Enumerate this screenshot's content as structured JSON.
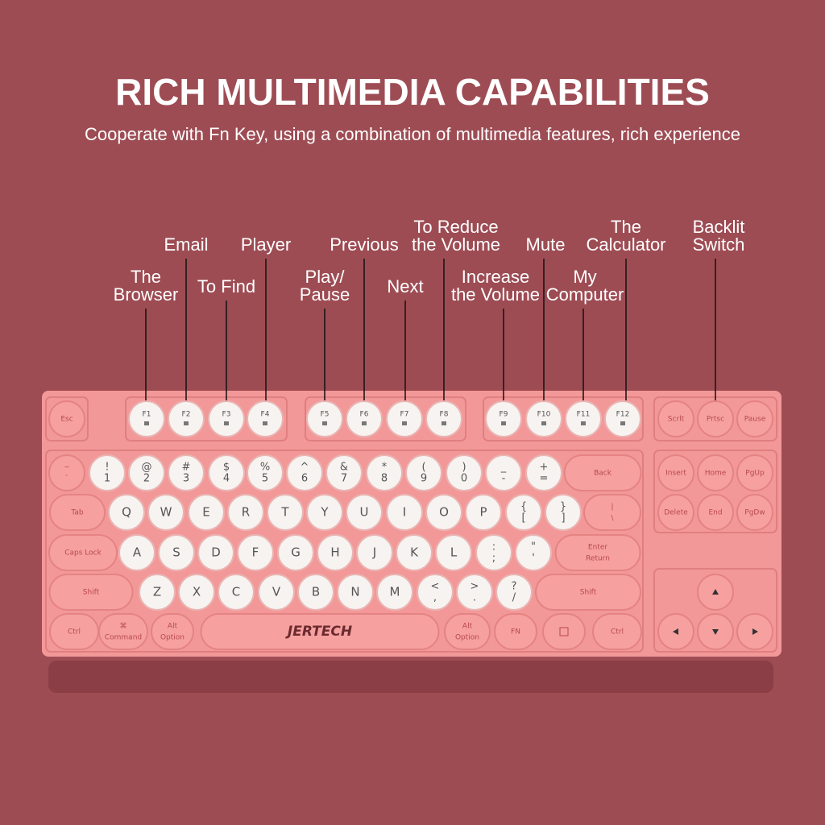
{
  "header": {
    "title": "RICH MULTIMEDIA CAPABILITIES",
    "subtitle": "Cooperate with Fn Key, using a combination of multimedia features, rich experience"
  },
  "callouts": [
    {
      "lines": [
        "The",
        "Browser"
      ]
    },
    {
      "lines": [
        "Email"
      ]
    },
    {
      "lines": [
        "To Find"
      ]
    },
    {
      "lines": [
        "Player"
      ]
    },
    {
      "lines": [
        "Play/",
        "Pause"
      ]
    },
    {
      "lines": [
        "Previous"
      ]
    },
    {
      "lines": [
        "Next"
      ]
    },
    {
      "lines": [
        "To Reduce",
        "the Volume"
      ]
    },
    {
      "lines": [
        "Increase",
        "the Volume"
      ]
    },
    {
      "lines": [
        "Mute"
      ]
    },
    {
      "lines": [
        "My",
        "Computer"
      ]
    },
    {
      "lines": [
        "The",
        "Calculator"
      ]
    },
    {
      "lines": [
        "Backlit",
        "Switch"
      ]
    }
  ],
  "keys": [
    "Esc",
    "F1",
    "F2",
    "F3",
    "F4",
    "F5",
    "F6",
    "F7",
    "F8",
    "F9",
    "F10",
    "F11",
    "F12",
    "Scrlt",
    "Prtsc",
    "Pause",
    [
      "~",
      "`"
    ],
    [
      "!",
      "1"
    ],
    [
      "@",
      "2"
    ],
    [
      "#",
      "3"
    ],
    [
      "$",
      "4"
    ],
    [
      "%",
      "5"
    ],
    [
      "^",
      "6"
    ],
    [
      "&",
      "7"
    ],
    [
      "*",
      "8"
    ],
    [
      "(",
      "9"
    ],
    [
      ")",
      "0"
    ],
    [
      "_",
      "-"
    ],
    [
      "+",
      "="
    ],
    "Back",
    "Insert",
    "Home",
    "PgUp",
    "Tab",
    "Q",
    "W",
    "E",
    "R",
    "T",
    "Y",
    "U",
    "I",
    "O",
    "P",
    [
      "{",
      "["
    ],
    [
      "}",
      "]"
    ],
    [
      "|",
      "\\"
    ],
    "Delete",
    "End",
    "PgDw",
    "Caps Lock",
    "A",
    "S",
    "D",
    "F",
    "G",
    "H",
    "J",
    "K",
    "L",
    [
      ":",
      ";"
    ],
    [
      "\"",
      "'"
    ],
    [
      "Enter",
      "Return"
    ],
    "Shift",
    "Z",
    "X",
    "C",
    "V",
    "B",
    "N",
    "M",
    [
      "<",
      ","
    ],
    [
      ">",
      "."
    ],
    [
      "?",
      "/"
    ],
    "Shift",
    "Ctrl",
    [
      "⌘",
      "Command"
    ],
    [
      "Alt",
      "Option"
    ],
    "JERTECH",
    [
      "Alt",
      "Option"
    ],
    "FN",
    "Ctrl"
  ]
}
